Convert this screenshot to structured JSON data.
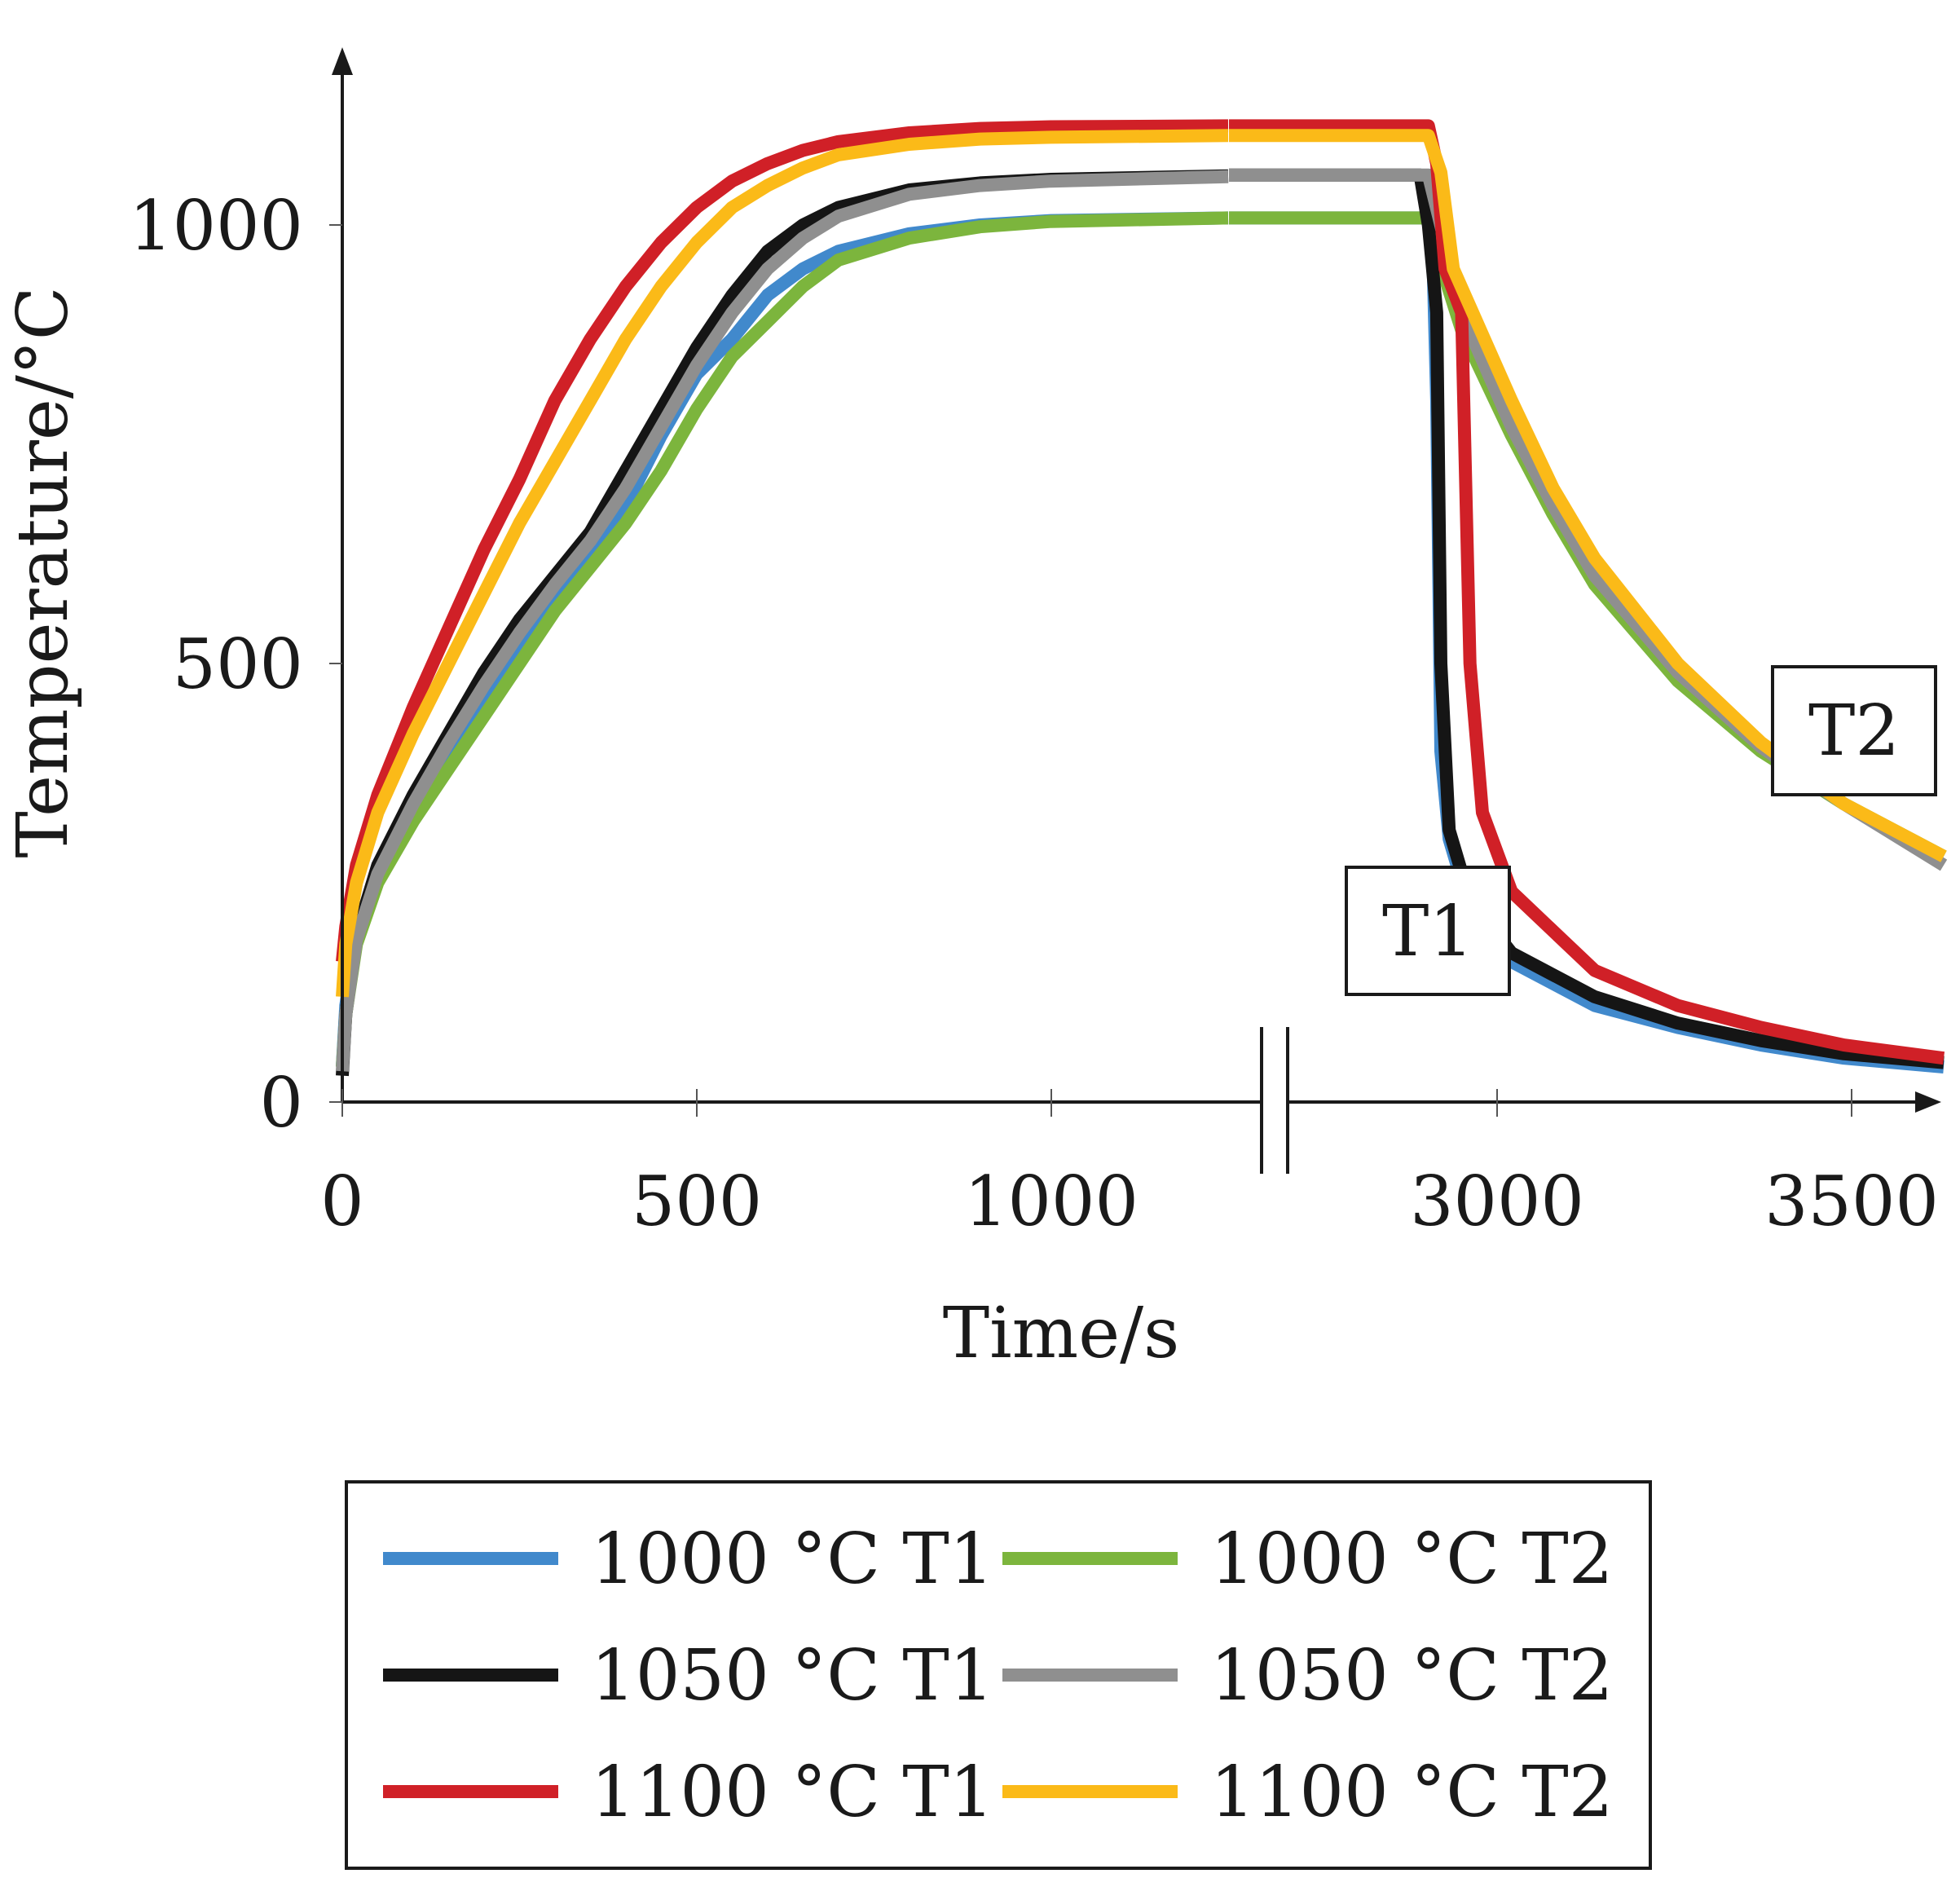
{
  "chart_data": {
    "type": "line",
    "xlabel": "Time/s",
    "ylabel": "Temperature/°C",
    "x_ticks": [
      "0",
      "500",
      "1000",
      "3000",
      "3500"
    ],
    "y_ticks": [
      "0",
      "500",
      "1000"
    ],
    "x_segments": [
      [
        0,
        1250
      ],
      [
        2760,
        3620
      ]
    ],
    "ylim": [
      0,
      1150
    ],
    "axis_break": "between 1250 s and 2760 s",
    "annotations": [
      "T1",
      "T2"
    ],
    "legend_position": "bottom",
    "series": [
      {
        "name": "1000 °C T1",
        "color": "#4189cc",
        "width": 16,
        "points": [
          [
            0,
            40
          ],
          [
            5,
            110
          ],
          [
            20,
            190
          ],
          [
            50,
            260
          ],
          [
            100,
            330
          ],
          [
            150,
            390
          ],
          [
            200,
            450
          ],
          [
            250,
            510
          ],
          [
            300,
            570
          ],
          [
            350,
            620
          ],
          [
            400,
            680
          ],
          [
            450,
            760
          ],
          [
            500,
            830
          ],
          [
            550,
            870
          ],
          [
            600,
            920
          ],
          [
            650,
            950
          ],
          [
            700,
            970
          ],
          [
            800,
            990
          ],
          [
            900,
            1000
          ],
          [
            1000,
            1005
          ],
          [
            1250,
            1008
          ],
          [
            2760,
            1008
          ],
          [
            3000,
            1008
          ],
          [
            3005,
            980
          ],
          [
            3010,
            800
          ],
          [
            3015,
            400
          ],
          [
            3025,
            300
          ],
          [
            3050,
            220
          ],
          [
            3100,
            160
          ],
          [
            3200,
            110
          ],
          [
            3300,
            85
          ],
          [
            3400,
            65
          ],
          [
            3500,
            50
          ],
          [
            3620,
            40
          ]
        ]
      },
      {
        "name": "1000 °C T2",
        "color": "#7cb53d",
        "width": 16,
        "points": [
          [
            0,
            40
          ],
          [
            5,
            100
          ],
          [
            20,
            180
          ],
          [
            50,
            250
          ],
          [
            100,
            320
          ],
          [
            150,
            380
          ],
          [
            200,
            440
          ],
          [
            250,
            500
          ],
          [
            300,
            560
          ],
          [
            350,
            610
          ],
          [
            400,
            660
          ],
          [
            450,
            720
          ],
          [
            500,
            790
          ],
          [
            550,
            850
          ],
          [
            600,
            890
          ],
          [
            650,
            930
          ],
          [
            700,
            960
          ],
          [
            800,
            985
          ],
          [
            900,
            998
          ],
          [
            1000,
            1004
          ],
          [
            1250,
            1008
          ],
          [
            2760,
            1008
          ],
          [
            3000,
            1008
          ],
          [
            3020,
            940
          ],
          [
            3040,
            880
          ],
          [
            3100,
            760
          ],
          [
            3150,
            670
          ],
          [
            3200,
            590
          ],
          [
            3300,
            480
          ],
          [
            3400,
            400
          ],
          [
            3500,
            340
          ],
          [
            3620,
            280
          ]
        ]
      },
      {
        "name": "1050 °C T1",
        "color": "#151515",
        "width": 16,
        "points": [
          [
            0,
            30
          ],
          [
            5,
            100
          ],
          [
            20,
            190
          ],
          [
            50,
            270
          ],
          [
            100,
            350
          ],
          [
            150,
            420
          ],
          [
            200,
            490
          ],
          [
            250,
            550
          ],
          [
            300,
            600
          ],
          [
            350,
            650
          ],
          [
            400,
            720
          ],
          [
            450,
            790
          ],
          [
            500,
            860
          ],
          [
            550,
            920
          ],
          [
            600,
            970
          ],
          [
            650,
            1000
          ],
          [
            700,
            1020
          ],
          [
            800,
            1040
          ],
          [
            900,
            1048
          ],
          [
            1000,
            1052
          ],
          [
            1250,
            1056
          ],
          [
            2760,
            1057
          ],
          [
            2990,
            1057
          ],
          [
            3000,
            1000
          ],
          [
            3010,
            900
          ],
          [
            3015,
            500
          ],
          [
            3025,
            310
          ],
          [
            3050,
            230
          ],
          [
            3100,
            170
          ],
          [
            3200,
            120
          ],
          [
            3300,
            90
          ],
          [
            3400,
            70
          ],
          [
            3500,
            55
          ],
          [
            3620,
            45
          ]
        ]
      },
      {
        "name": "1050 °C T2",
        "color": "#8f8f8f",
        "width": 16,
        "points": [
          [
            0,
            35
          ],
          [
            5,
            100
          ],
          [
            20,
            185
          ],
          [
            50,
            260
          ],
          [
            100,
            340
          ],
          [
            150,
            410
          ],
          [
            200,
            475
          ],
          [
            250,
            535
          ],
          [
            300,
            590
          ],
          [
            350,
            640
          ],
          [
            400,
            700
          ],
          [
            450,
            770
          ],
          [
            500,
            840
          ],
          [
            550,
            900
          ],
          [
            600,
            950
          ],
          [
            650,
            985
          ],
          [
            700,
            1010
          ],
          [
            800,
            1035
          ],
          [
            900,
            1045
          ],
          [
            1000,
            1050
          ],
          [
            1250,
            1055
          ],
          [
            2760,
            1057
          ],
          [
            3000,
            1057
          ],
          [
            3020,
            980
          ],
          [
            3040,
            900
          ],
          [
            3100,
            770
          ],
          [
            3150,
            680
          ],
          [
            3200,
            600
          ],
          [
            3300,
            490
          ],
          [
            3400,
            405
          ],
          [
            3500,
            340
          ],
          [
            3620,
            270
          ]
        ]
      },
      {
        "name": "1100 °C T1",
        "color": "#d02027",
        "width": 16,
        "points": [
          [
            0,
            160
          ],
          [
            5,
            200
          ],
          [
            20,
            270
          ],
          [
            50,
            350
          ],
          [
            100,
            450
          ],
          [
            150,
            540
          ],
          [
            200,
            630
          ],
          [
            250,
            710
          ],
          [
            300,
            800
          ],
          [
            350,
            870
          ],
          [
            400,
            930
          ],
          [
            450,
            980
          ],
          [
            500,
            1020
          ],
          [
            550,
            1050
          ],
          [
            600,
            1070
          ],
          [
            650,
            1085
          ],
          [
            700,
            1095
          ],
          [
            800,
            1105
          ],
          [
            900,
            1110
          ],
          [
            1000,
            1112
          ],
          [
            1250,
            1113
          ],
          [
            2760,
            1113
          ],
          [
            3000,
            1113
          ],
          [
            3010,
            1070
          ],
          [
            3020,
            950
          ],
          [
            3040,
            900
          ],
          [
            3050,
            500
          ],
          [
            3065,
            330
          ],
          [
            3100,
            240
          ],
          [
            3200,
            150
          ],
          [
            3300,
            110
          ],
          [
            3400,
            85
          ],
          [
            3500,
            65
          ],
          [
            3620,
            50
          ]
        ]
      },
      {
        "name": "1100 °C T2",
        "color": "#fbba18",
        "width": 16,
        "points": [
          [
            0,
            120
          ],
          [
            5,
            180
          ],
          [
            20,
            250
          ],
          [
            50,
            330
          ],
          [
            100,
            420
          ],
          [
            150,
            500
          ],
          [
            200,
            580
          ],
          [
            250,
            660
          ],
          [
            300,
            730
          ],
          [
            350,
            800
          ],
          [
            400,
            870
          ],
          [
            450,
            930
          ],
          [
            500,
            980
          ],
          [
            550,
            1020
          ],
          [
            600,
            1045
          ],
          [
            650,
            1065
          ],
          [
            700,
            1080
          ],
          [
            800,
            1092
          ],
          [
            900,
            1098
          ],
          [
            1000,
            1100
          ],
          [
            1250,
            1102
          ],
          [
            2760,
            1102
          ],
          [
            3000,
            1102
          ],
          [
            3015,
            1060
          ],
          [
            3030,
            950
          ],
          [
            3100,
            800
          ],
          [
            3150,
            700
          ],
          [
            3200,
            620
          ],
          [
            3300,
            500
          ],
          [
            3400,
            410
          ],
          [
            3500,
            340
          ],
          [
            3620,
            280
          ]
        ]
      }
    ]
  }
}
